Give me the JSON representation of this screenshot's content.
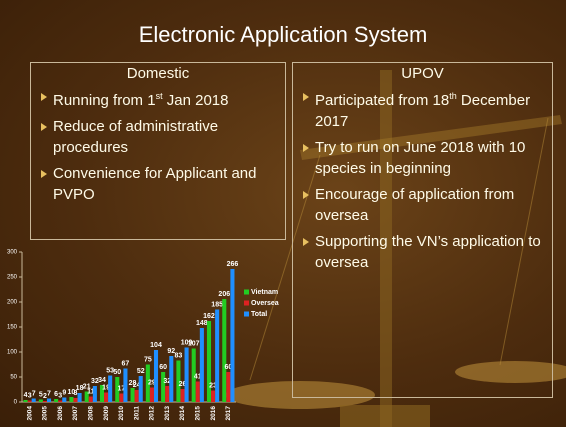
{
  "title": "Electronic Application System",
  "domestic": {
    "heading": "Domestic",
    "items": [
      [
        "Running from 1",
        "st",
        " Jan 2018"
      ],
      "Reduce of administrative procedures",
      "Convenience for Applicant and PVPO"
    ]
  },
  "upov": {
    "heading": "UPOV",
    "items": [
      [
        "Participated from 18",
        "th",
        " December 2017"
      ],
      "Try to run on June 2018 with 10 species in beginning",
      "Encourage of application from oversea",
      "Supporting the VN’s application to oversea"
    ]
  },
  "chart_data": {
    "type": "bar",
    "categories": [
      "2004",
      "2005",
      "2006",
      "2007",
      "2008",
      "2009",
      "2010",
      "2011",
      "2012",
      "2013",
      "2014",
      "2015",
      "2016",
      "2017"
    ],
    "series": [
      {
        "name": "Vietnam",
        "color": "#22cc22",
        "values": [
          4,
          5,
          6,
          10,
          21,
          34,
          50,
          28,
          75,
          60,
          83,
          107,
          162,
          206
        ]
      },
      {
        "name": "Oversea",
        "color": "#dd2222",
        "values": [
          3,
          2,
          3,
          8,
          11,
          19,
          17,
          24,
          29,
          32,
          26,
          41,
          23,
          60
        ]
      },
      {
        "name": "Total",
        "color": "#1f8fff",
        "values": [
          7,
          7,
          9,
          18,
          32,
          53,
          67,
          52,
          104,
          92,
          109,
          148,
          185,
          266
        ]
      }
    ],
    "ylim": [
      0,
      300
    ],
    "yticks": [
      0,
      50,
      100,
      150,
      200,
      250,
      300
    ],
    "legend": "right"
  }
}
